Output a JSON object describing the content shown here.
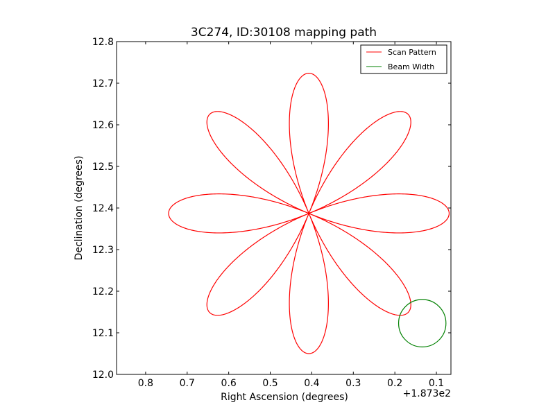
{
  "chart_data": {
    "type": "line",
    "title": "3C274, ID:30108 mapping path",
    "xlabel": "Right Ascension (degrees)",
    "ylabel": "Declination (degrees)",
    "x_offset_label": "+1.873e2",
    "xlim": [
      0.87,
      0.065
    ],
    "ylim": [
      12.0,
      12.8
    ],
    "x_reversed": true,
    "x_ticks": [
      0.8,
      0.7,
      0.6,
      0.5,
      0.4,
      0.3,
      0.2,
      0.1
    ],
    "x_tick_labels": [
      "0.8",
      "0.7",
      "0.6",
      "0.5",
      "0.4",
      "0.3",
      "0.2",
      "0.1"
    ],
    "y_ticks": [
      12.0,
      12.1,
      12.2,
      12.3,
      12.4,
      12.5,
      12.6,
      12.7,
      12.8
    ],
    "y_tick_labels": [
      "12.0",
      "12.1",
      "12.2",
      "12.3",
      "12.4",
      "12.5",
      "12.6",
      "12.7",
      "12.8"
    ],
    "grid": false,
    "legend_position": "top-right",
    "series": [
      {
        "name": "Scan Pattern",
        "color": "#ff0000",
        "kind": "rose",
        "center": [
          0.407,
          12.387
        ],
        "amplitude": 0.337,
        "petals": 8,
        "orientation_deg": 0
      },
      {
        "name": "Beam Width",
        "color": "#008000",
        "kind": "circle",
        "center": [
          0.134,
          12.123
        ],
        "radius": 0.057
      }
    ]
  }
}
